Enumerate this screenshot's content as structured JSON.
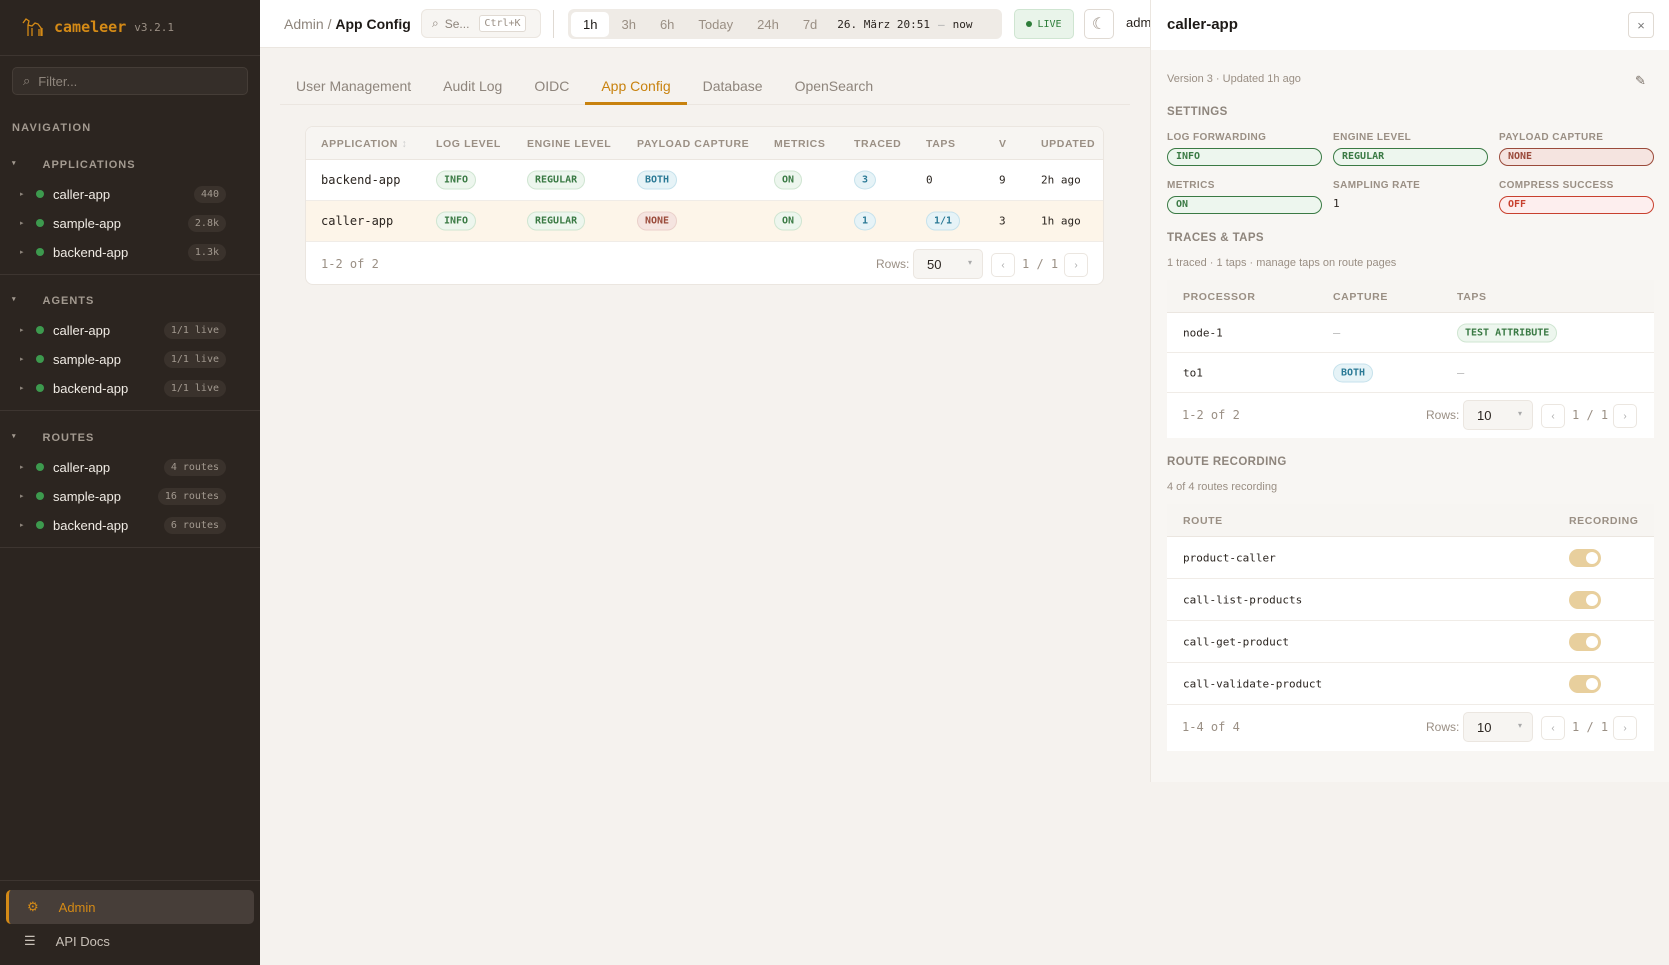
{
  "app": {
    "name": "cameleer",
    "version": "v3.2.1"
  },
  "sidebar": {
    "filter_placeholder": "Filter...",
    "nav_title": "NAVIGATION",
    "groups": [
      {
        "title": "APPLICATIONS",
        "items": [
          {
            "label": "caller-app",
            "badge": "440"
          },
          {
            "label": "sample-app",
            "badge": "2.8k"
          },
          {
            "label": "backend-app",
            "badge": "1.3k"
          }
        ]
      },
      {
        "title": "AGENTS",
        "items": [
          {
            "label": "caller-app",
            "badge": "1/1 live"
          },
          {
            "label": "sample-app",
            "badge": "1/1 live"
          },
          {
            "label": "backend-app",
            "badge": "1/1 live"
          }
        ]
      },
      {
        "title": "ROUTES",
        "items": [
          {
            "label": "caller-app",
            "badge": "4 routes"
          },
          {
            "label": "sample-app",
            "badge": "16 routes"
          },
          {
            "label": "backend-app",
            "badge": "6 routes"
          }
        ]
      }
    ],
    "bottom": [
      {
        "label": "Admin",
        "icon": "gear-icon",
        "active": true
      },
      {
        "label": "API Docs",
        "icon": "menu-icon"
      }
    ],
    "status_color": "#3d9a4e"
  },
  "topbar": {
    "breadcrumb": [
      "Admin",
      "App Config"
    ],
    "search_label": "Se...",
    "search_shortcut": "Ctrl+K",
    "ranges": [
      "1h",
      "3h",
      "6h",
      "Today",
      "24h",
      "7d"
    ],
    "active_range": "1h",
    "datetime": "26. März 20:51",
    "sep": "–",
    "now": "now",
    "live": "LIVE",
    "user": "adm"
  },
  "tabs": [
    "User Management",
    "Audit Log",
    "OIDC",
    "App Config",
    "Database",
    "OpenSearch"
  ],
  "active_tab": "App Config",
  "accent": "#c8820e",
  "table": {
    "headers": [
      "APPLICATION",
      "LOG LEVEL",
      "ENGINE LEVEL",
      "PAYLOAD CAPTURE",
      "METRICS",
      "TRACED",
      "TAPS",
      "V",
      "UPDATED"
    ],
    "sort_icon": "↕",
    "rows": [
      {
        "app": "backend-app",
        "log": "INFO",
        "engine": "REGULAR",
        "payload": "BOTH",
        "metrics": "ON",
        "traced": "3",
        "taps": "0",
        "v": "9",
        "updated": "2h ago"
      },
      {
        "app": "caller-app",
        "log": "INFO",
        "engine": "REGULAR",
        "payload": "NONE",
        "metrics": "ON",
        "traced": "1",
        "taps": "1/1",
        "v": "3",
        "updated": "1h ago"
      }
    ],
    "count": "1-2 of 2",
    "rows_label": "Rows:",
    "rows_value": "50",
    "page": "1 / 1"
  },
  "panel": {
    "title": "caller-app",
    "close": "×",
    "meta": "Version 3 · Updated 1h  ago",
    "settings_title": "SETTINGS",
    "settings": [
      {
        "label": "LOG FORWARDING",
        "value": "INFO"
      },
      {
        "label": "ENGINE LEVEL",
        "value": "REGULAR"
      },
      {
        "label": "PAYLOAD CAPTURE",
        "value": "NONE"
      },
      {
        "label": "METRICS",
        "value": "ON"
      },
      {
        "label": "SAMPLING RATE",
        "value": "1"
      },
      {
        "label": "COMPRESS SUCCESS",
        "value": "OFF"
      }
    ],
    "traces_title": "TRACES & TAPS",
    "traces_sub": "1 traced · 1 taps · manage taps on route pages",
    "traces_headers": [
      "PROCESSOR",
      "CAPTURE",
      "TAPS"
    ],
    "traces_rows": [
      {
        "processor": "node-1",
        "capture": "—",
        "taps": "TEST ATTRIBUTE"
      },
      {
        "processor": "to1",
        "capture": "BOTH",
        "taps": "—"
      }
    ],
    "traces_count": "1-2 of 2",
    "rows_label": "Rows:",
    "traces_rows_value": "10",
    "traces_page": "1 / 1",
    "routes_title": "ROUTE RECORDING",
    "routes_sub": "4 of 4 routes recording",
    "routes_headers": [
      "ROUTE",
      "RECORDING"
    ],
    "routes": [
      {
        "name": "product-caller",
        "recording": true
      },
      {
        "name": "call-list-products",
        "recording": true
      },
      {
        "name": "call-get-product",
        "recording": true
      },
      {
        "name": "call-validate-product",
        "recording": true
      }
    ],
    "routes_count": "1-4 of 4",
    "routes_rows_value": "10",
    "routes_page": "1 / 1"
  }
}
